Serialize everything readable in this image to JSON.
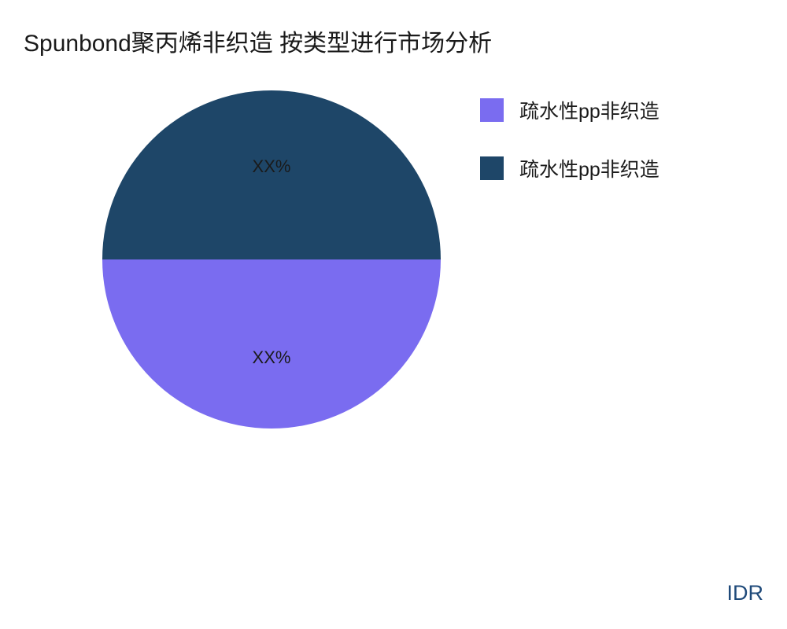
{
  "chart": {
    "type": "pie",
    "title": "Spunbond聚丙烯非织造 按类型进行市场分析",
    "title_fontsize": 30,
    "title_color": "#1a1a1a",
    "background_color": "#ffffff",
    "pie_diameter": 430,
    "slices": [
      {
        "label": "XX%",
        "value": 50,
        "color": "#1e4668",
        "label_color": "#1a1a1a"
      },
      {
        "label": "XX%",
        "value": 50,
        "color": "#7a6cf0",
        "label_color": "#1a1a1a"
      }
    ],
    "slice_label_fontsize": 22,
    "legend": {
      "position": "right",
      "swatch_size": 30,
      "fontsize": 25,
      "items": [
        {
          "label": "疏水性pp非织造",
          "color": "#7a6cf0"
        },
        {
          "label": "疏水性pp非织造",
          "color": "#1e4668"
        }
      ]
    }
  },
  "footer": {
    "text": "IDR",
    "color": "#1f4a7a",
    "fontsize": 27
  }
}
